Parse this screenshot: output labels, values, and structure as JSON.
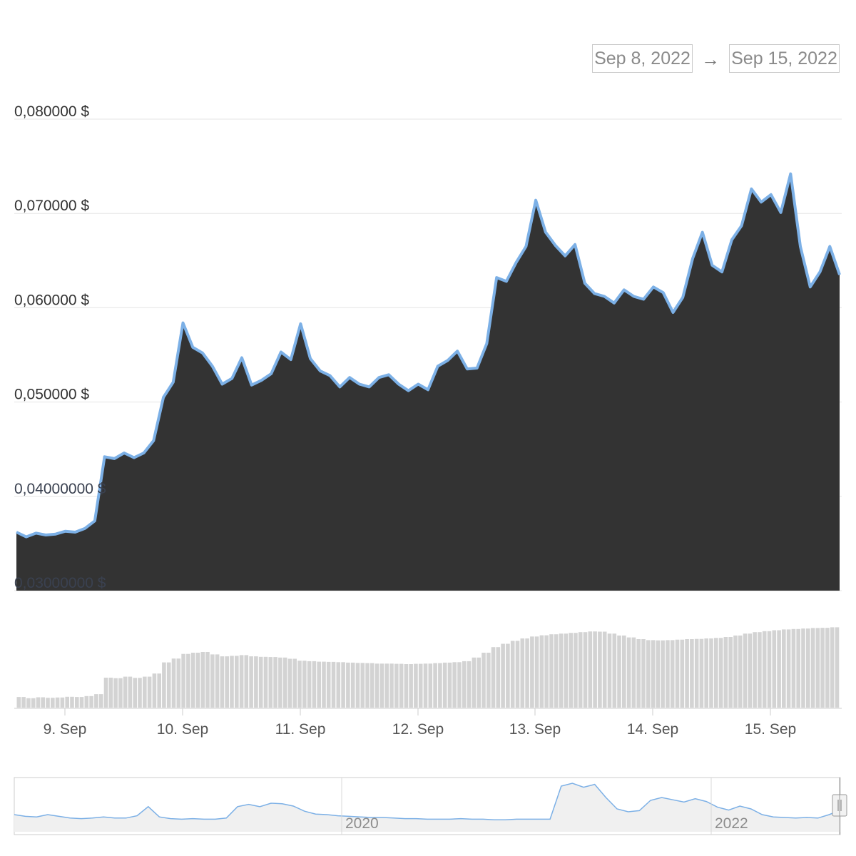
{
  "range_selector": {
    "start": "Sep 8, 2022",
    "arrow": "→",
    "end": "Sep 15, 2022"
  },
  "colors": {
    "area_fill": "#333333",
    "line": "#7cb0e6",
    "volume_bar": "#d3d3d3",
    "navigator_line": "#7cb0e6",
    "grid": "#e6e6e6"
  },
  "chart_data": [
    {
      "type": "area",
      "title": "",
      "xlabel": "",
      "ylabel": "",
      "x_range": [
        "2022-09-08T14:00",
        "2022-09-15T14:00"
      ],
      "ylim": [
        0.03,
        0.08
      ],
      "y_tick_labels": [
        "0,080000 $",
        "0,070000 $",
        "0,060000 $",
        "0,050000 $",
        "0,04000000 $",
        "0,03000000 $"
      ],
      "y_tick_values": [
        0.08,
        0.07,
        0.06,
        0.05,
        0.04,
        0.03
      ],
      "x_tick_labels": [
        "9. Sep",
        "10. Sep",
        "11. Sep",
        "12. Sep",
        "13. Sep",
        "14. Sep",
        "15. Sep"
      ],
      "x_tick_values": [
        "2022-09-09",
        "2022-09-10",
        "2022-09-11",
        "2022-09-12",
        "2022-09-13",
        "2022-09-14",
        "2022-09-15"
      ],
      "grid": true,
      "legend": "none",
      "series": [
        {
          "x": [
            "09-08 14:00",
            "09-08 16:00",
            "09-08 18:00",
            "09-08 20:00",
            "09-08 22:00",
            "09-09 00:00",
            "09-09 02:00",
            "09-09 04:00",
            "09-09 06:00",
            "09-09 08:00",
            "09-09 10:00",
            "09-09 12:00",
            "09-09 14:00",
            "09-09 16:00",
            "09-09 18:00",
            "09-09 20:00",
            "09-09 22:00",
            "09-10 00:00",
            "09-10 02:00",
            "09-10 04:00",
            "09-10 06:00",
            "09-10 08:00",
            "09-10 10:00",
            "09-10 12:00",
            "09-10 14:00",
            "09-10 16:00",
            "09-10 18:00",
            "09-10 20:00",
            "09-10 22:00",
            "09-11 00:00",
            "09-11 02:00",
            "09-11 04:00",
            "09-11 06:00",
            "09-11 08:00",
            "09-11 10:00",
            "09-11 12:00",
            "09-11 14:00",
            "09-11 16:00",
            "09-11 18:00",
            "09-11 20:00",
            "09-11 22:00",
            "09-12 00:00",
            "09-12 02:00",
            "09-12 04:00",
            "09-12 06:00",
            "09-12 08:00",
            "09-12 10:00",
            "09-12 12:00",
            "09-12 14:00",
            "09-12 16:00",
            "09-12 18:00",
            "09-12 20:00",
            "09-12 22:00",
            "09-13 00:00",
            "09-13 02:00",
            "09-13 04:00",
            "09-13 06:00",
            "09-13 08:00",
            "09-13 10:00",
            "09-13 12:00",
            "09-13 14:00",
            "09-13 16:00",
            "09-13 18:00",
            "09-13 20:00",
            "09-13 22:00",
            "09-14 00:00",
            "09-14 02:00",
            "09-14 04:00",
            "09-14 06:00",
            "09-14 08:00",
            "09-14 10:00",
            "09-14 12:00",
            "09-14 14:00",
            "09-14 16:00",
            "09-14 18:00",
            "09-14 20:00",
            "09-14 22:00",
            "09-15 00:00",
            "09-15 02:00",
            "09-15 04:00",
            "09-15 06:00",
            "09-15 08:00",
            "09-15 10:00",
            "09-15 12:00",
            "09-15 14:00"
          ],
          "values": [
            0.0362,
            0.0357,
            0.0361,
            0.0359,
            0.036,
            0.0363,
            0.0362,
            0.0366,
            0.0374,
            0.0442,
            0.044,
            0.0446,
            0.0441,
            0.0446,
            0.0459,
            0.0505,
            0.0521,
            0.0584,
            0.0558,
            0.0552,
            0.0538,
            0.0519,
            0.0525,
            0.0547,
            0.0518,
            0.0523,
            0.053,
            0.0553,
            0.0545,
            0.0583,
            0.0546,
            0.0533,
            0.0528,
            0.0516,
            0.0526,
            0.0519,
            0.0516,
            0.0526,
            0.0529,
            0.0519,
            0.0512,
            0.0519,
            0.0513,
            0.0538,
            0.0544,
            0.0554,
            0.0535,
            0.0536,
            0.0562,
            0.0632,
            0.0628,
            0.0648,
            0.0665,
            0.0714,
            0.068,
            0.0666,
            0.0655,
            0.0667,
            0.0626,
            0.0615,
            0.0612,
            0.0605,
            0.0619,
            0.0612,
            0.0609,
            0.0622,
            0.0616,
            0.0595,
            0.0611,
            0.0652,
            0.068,
            0.0645,
            0.0638,
            0.0672,
            0.0687,
            0.0726,
            0.0712,
            0.072,
            0.0701,
            0.0742,
            0.0665,
            0.0622,
            0.0638,
            0.0665,
            0.0635
          ]
        }
      ]
    },
    {
      "type": "bar",
      "title": "",
      "xlabel": "",
      "ylabel": "",
      "values": [
        0.0362,
        0.0357,
        0.0361,
        0.0359,
        0.036,
        0.0363,
        0.0362,
        0.0366,
        0.0374,
        0.0442,
        0.044,
        0.0446,
        0.0441,
        0.0446,
        0.0459,
        0.0505,
        0.0521,
        0.054,
        0.0545,
        0.0548,
        0.0538,
        0.053,
        0.0532,
        0.0535,
        0.053,
        0.0528,
        0.0527,
        0.0525,
        0.052,
        0.0512,
        0.051,
        0.0508,
        0.0507,
        0.0506,
        0.0504,
        0.0503,
        0.0502,
        0.05,
        0.05,
        0.0499,
        0.0498,
        0.0499,
        0.05,
        0.0502,
        0.0504,
        0.0506,
        0.051,
        0.0525,
        0.0545,
        0.0568,
        0.0582,
        0.0594,
        0.0604,
        0.0612,
        0.0617,
        0.0621,
        0.0624,
        0.0627,
        0.063,
        0.0633,
        0.0632,
        0.0624,
        0.0616,
        0.0608,
        0.0601,
        0.0597,
        0.0596,
        0.0597,
        0.0599,
        0.0601,
        0.0602,
        0.0604,
        0.0606,
        0.061,
        0.0616,
        0.0624,
        0.063,
        0.0634,
        0.0638,
        0.0641,
        0.0643,
        0.0645,
        0.0647,
        0.0648,
        0.065
      ]
    },
    {
      "type": "line",
      "title": "",
      "x_tick_labels": [
        "2020",
        "2022"
      ],
      "x_range": [
        "2018",
        "2022-09-15"
      ],
      "values": [
        0.03,
        0.027,
        0.026,
        0.03,
        0.027,
        0.024,
        0.023,
        0.024,
        0.026,
        0.024,
        0.024,
        0.028,
        0.044,
        0.026,
        0.023,
        0.022,
        0.023,
        0.022,
        0.022,
        0.024,
        0.044,
        0.048,
        0.044,
        0.05,
        0.049,
        0.045,
        0.036,
        0.031,
        0.03,
        0.028,
        0.027,
        0.026,
        0.025,
        0.025,
        0.024,
        0.023,
        0.023,
        0.022,
        0.022,
        0.022,
        0.023,
        0.022,
        0.022,
        0.021,
        0.021,
        0.022,
        0.022,
        0.022,
        0.022,
        0.08,
        0.085,
        0.078,
        0.083,
        0.06,
        0.04,
        0.035,
        0.037,
        0.055,
        0.06,
        0.056,
        0.052,
        0.058,
        0.053,
        0.043,
        0.038,
        0.045,
        0.04,
        0.03,
        0.026,
        0.025,
        0.024,
        0.025,
        0.024,
        0.03,
        0.038
      ]
    }
  ]
}
